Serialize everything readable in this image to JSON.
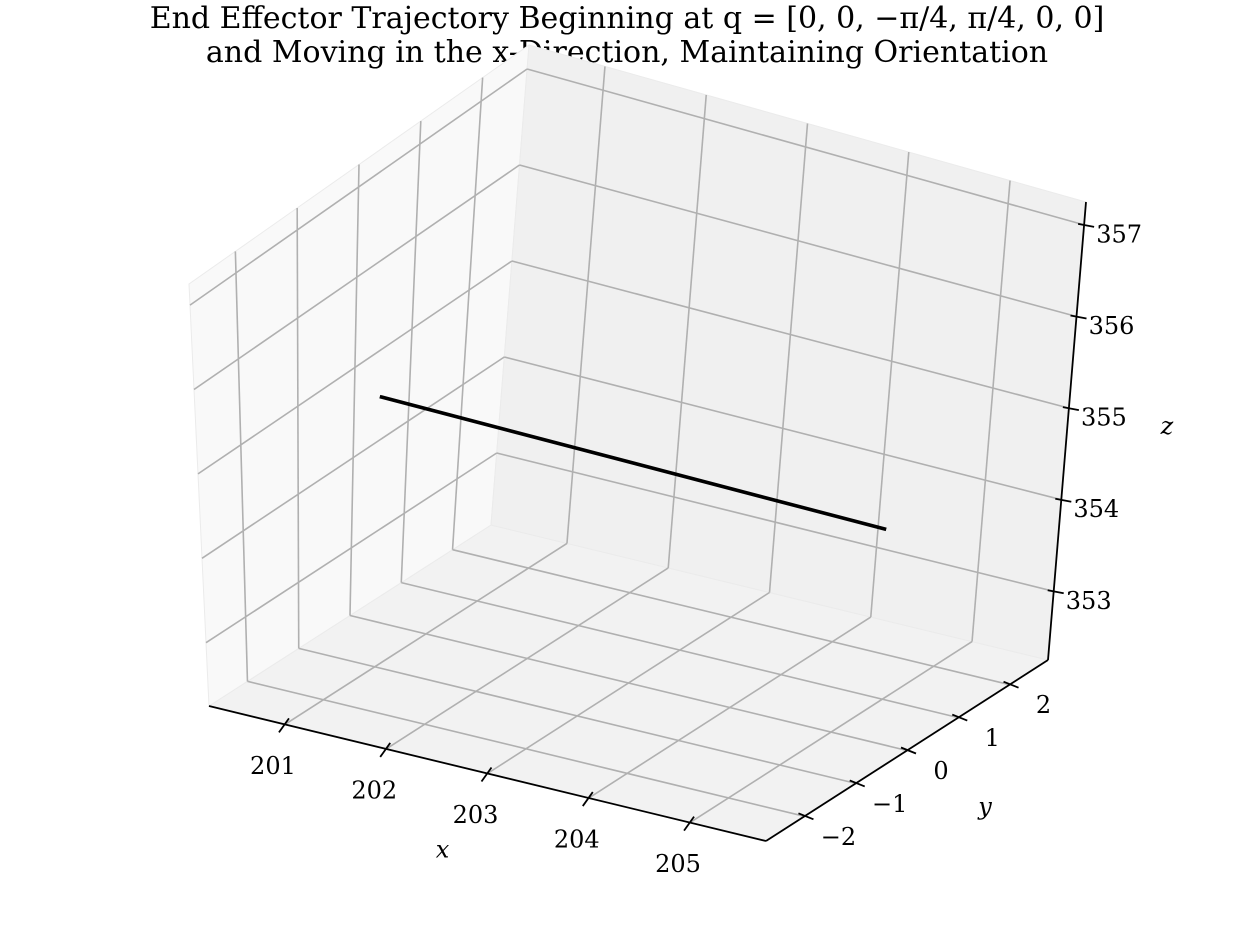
{
  "chart_data": {
    "type": "line",
    "title_line1": "End Effector Trajectory Beginning at q = [0, 0, −π/4, π/4, 0, 0]",
    "title_line2": "and Moving in the x-Direction, Maintaining Orientation",
    "xlabel": "x",
    "ylabel": "y",
    "zlabel": "z",
    "xlim": [
      200.25,
      205.75
    ],
    "ylim": [
      -2.75,
      2.75
    ],
    "zlim": [
      352.25,
      357.25
    ],
    "xticks": [
      201,
      202,
      203,
      204,
      205
    ],
    "xtick_labels": [
      "201",
      "202",
      "203",
      "204",
      "205"
    ],
    "yticks": [
      -2,
      -1,
      0,
      1,
      2
    ],
    "ytick_labels": [
      "−2",
      "−1",
      "0",
      "1",
      "2"
    ],
    "zticks": [
      353,
      354,
      355,
      356,
      357
    ],
    "ztick_labels": [
      "353",
      "354",
      "355",
      "356",
      "357"
    ],
    "grid": true,
    "series": [
      {
        "color": "#000000",
        "x": [
          200.5,
          205.5
        ],
        "y": [
          0,
          0
        ],
        "z": [
          354.75,
          354.75
        ]
      }
    ]
  }
}
